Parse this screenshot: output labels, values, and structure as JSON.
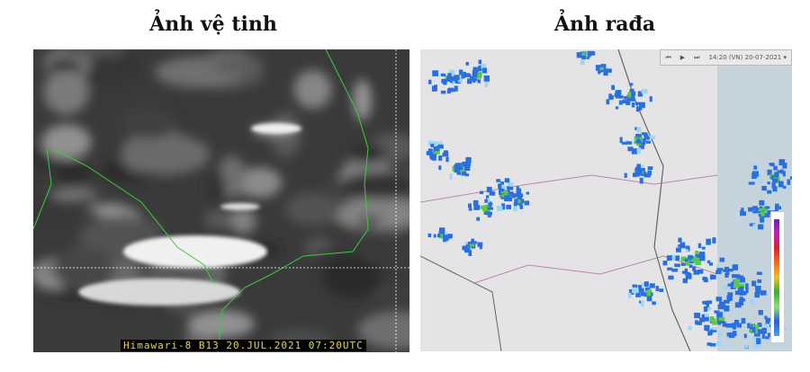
{
  "left_panel": {
    "title": "Ảnh vệ tinh",
    "caption": "Himawari-8 B13 20.JUL.2021 07:20UTC"
  },
  "right_panel": {
    "title": "Ảnh rađa",
    "controls": {
      "first": "⏮",
      "play": "▶",
      "last": "⏭",
      "time": "14:20 (VN) 20-07-2021 ▾"
    },
    "legend_colors": [
      "#6a1fb0",
      "#c020c0",
      "#e02020",
      "#f07020",
      "#f0c020",
      "#30b030",
      "#90e070",
      "#2060e0",
      "#50a0f0"
    ]
  },
  "colors": {
    "coastline": "#3ccc3c",
    "radar_blue": "#2a6fe0",
    "radar_green": "#5cc84a"
  }
}
